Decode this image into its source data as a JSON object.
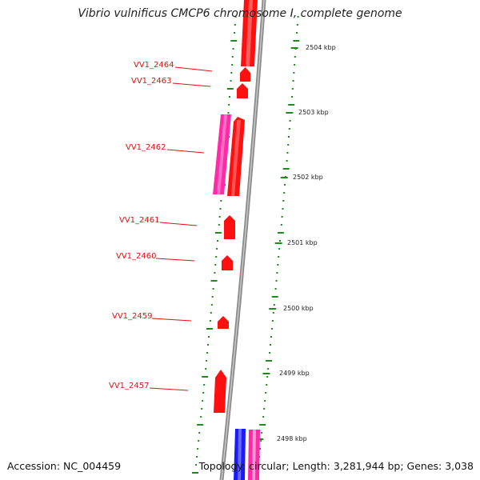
{
  "title": "Vibrio vulnificus CMCP6 chromosome I, complete genome",
  "footer": {
    "accession": "Accession: NC_004459",
    "info": "Topology: circular; Length: 3,281,944 bp; Genes: 3,038"
  },
  "colors": {
    "backbone": "#8a8a8a",
    "gene_plus": "#ff1010",
    "gene_minus": "#ff2aa8",
    "gene_other": "#1a1aff",
    "tick": "#1e8a1e",
    "label": "#e01010"
  },
  "gene_labels": [
    "VV1_2464",
    "VV1_2463",
    "VV1_2462",
    "VV1_2461",
    "VV1_2460",
    "VV1_2459",
    "VV1_2457"
  ],
  "scale_labels": [
    "2504 kbp",
    "2503 kbp",
    "2502 kbp",
    "2501 kbp",
    "2500 kbp",
    "2499 kbp",
    "2498 kbp"
  ]
}
